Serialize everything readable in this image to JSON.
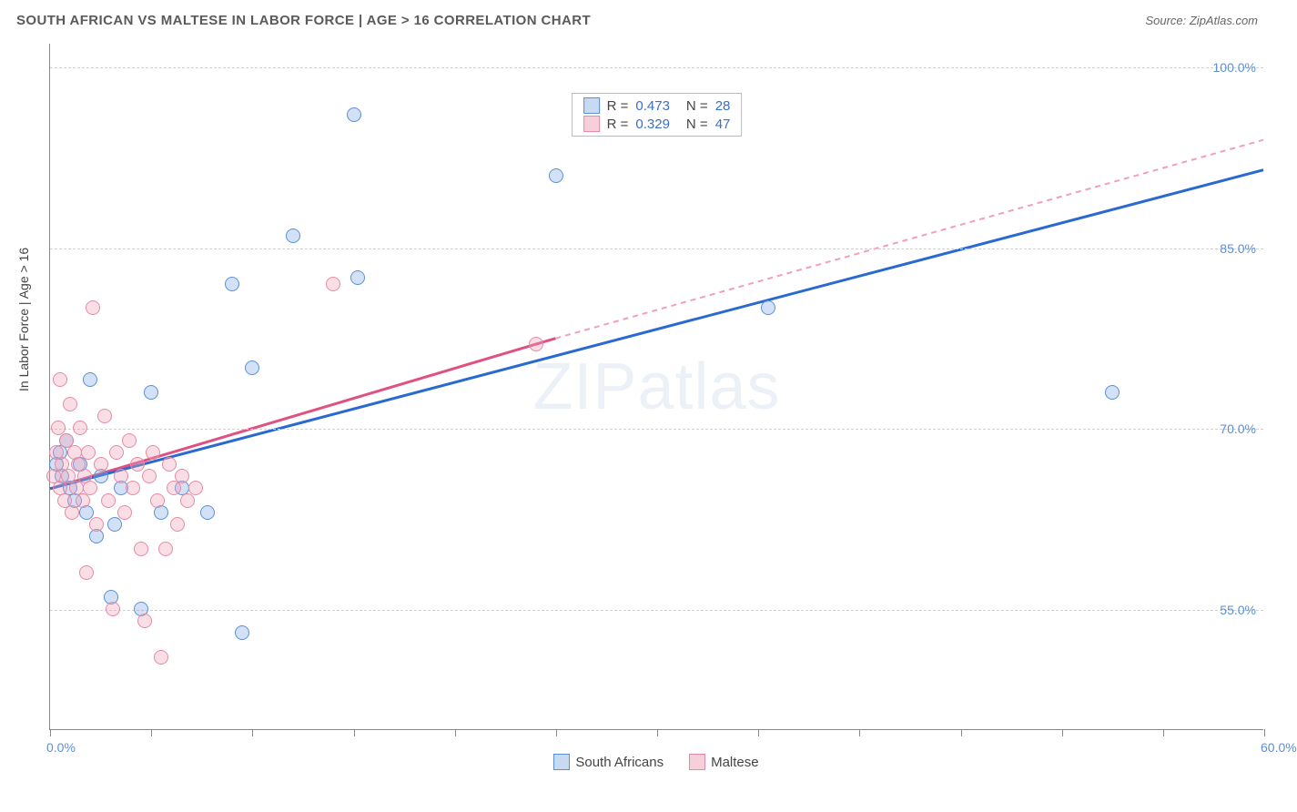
{
  "title": "SOUTH AFRICAN VS MALTESE IN LABOR FORCE | AGE > 16 CORRELATION CHART",
  "source": "Source: ZipAtlas.com",
  "y_axis_title": "In Labor Force | Age > 16",
  "watermark": "ZIPatlas",
  "chart": {
    "type": "scatter",
    "xlim": [
      0,
      60
    ],
    "ylim": [
      45,
      102
    ],
    "x_ticks": [
      0,
      5,
      10,
      15,
      20,
      25,
      30,
      35,
      40,
      45,
      50,
      55,
      60
    ],
    "x_tick_labels": {
      "0": "0.0%",
      "60": "60.0%"
    },
    "y_gridlines": [
      55,
      70,
      85,
      100
    ],
    "y_labels": {
      "55": "55.0%",
      "70": "70.0%",
      "85": "85.0%",
      "100": "100.0%"
    },
    "background_color": "#ffffff",
    "grid_color": "#d0d0d0",
    "axis_color": "#888888",
    "label_color": "#5b8fd8",
    "point_radius": 8,
    "series": [
      {
        "name": "South Africans",
        "color_fill": "rgba(130,170,230,0.35)",
        "color_stroke": "#5b8fd8",
        "legend_fill": "#c8daf2",
        "R": "0.473",
        "N": "28",
        "trend": {
          "x1": 0,
          "y1": 65,
          "x2": 60,
          "y2": 91.5,
          "stroke": "#2a6ad0",
          "width": 3,
          "dash": "none"
        },
        "points": [
          [
            0.3,
            67
          ],
          [
            0.5,
            68
          ],
          [
            0.6,
            66
          ],
          [
            0.8,
            69
          ],
          [
            1.0,
            65
          ],
          [
            1.2,
            64
          ],
          [
            1.5,
            67
          ],
          [
            1.8,
            63
          ],
          [
            2.0,
            74
          ],
          [
            2.3,
            61
          ],
          [
            2.5,
            66
          ],
          [
            3.0,
            56
          ],
          [
            3.2,
            62
          ],
          [
            3.5,
            65
          ],
          [
            4.5,
            55
          ],
          [
            5.0,
            73
          ],
          [
            5.5,
            63
          ],
          [
            6.5,
            65
          ],
          [
            7.8,
            63
          ],
          [
            9.0,
            82
          ],
          [
            9.5,
            53
          ],
          [
            10.0,
            75
          ],
          [
            12.0,
            86
          ],
          [
            15.0,
            96
          ],
          [
            15.2,
            82.5
          ],
          [
            25.0,
            91
          ],
          [
            35.5,
            80
          ],
          [
            52.5,
            73
          ]
        ]
      },
      {
        "name": "Maltese",
        "color_fill": "rgba(240,160,180,0.35)",
        "color_stroke": "#e68aa5",
        "legend_fill": "#f5d0da",
        "R": "0.329",
        "N": "47",
        "trend_solid": {
          "x1": 0,
          "y1": 65,
          "x2": 25,
          "y2": 77.5,
          "stroke": "#e05080",
          "width": 3
        },
        "trend_dash": {
          "x1": 25,
          "y1": 77.5,
          "x2": 60,
          "y2": 94,
          "stroke": "#f0a0b8",
          "width": 2,
          "dash": "6,5"
        },
        "points": [
          [
            0.2,
            66
          ],
          [
            0.3,
            68
          ],
          [
            0.4,
            70
          ],
          [
            0.5,
            65
          ],
          [
            0.6,
            67
          ],
          [
            0.7,
            64
          ],
          [
            0.8,
            69
          ],
          [
            0.9,
            66
          ],
          [
            1.0,
            72
          ],
          [
            1.1,
            63
          ],
          [
            1.2,
            68
          ],
          [
            1.3,
            65
          ],
          [
            1.4,
            67
          ],
          [
            1.5,
            70
          ],
          [
            1.6,
            64
          ],
          [
            1.7,
            66
          ],
          [
            1.8,
            58
          ],
          [
            1.9,
            68
          ],
          [
            2.0,
            65
          ],
          [
            2.1,
            80
          ],
          [
            2.3,
            62
          ],
          [
            2.5,
            67
          ],
          [
            2.7,
            71
          ],
          [
            2.9,
            64
          ],
          [
            3.1,
            55
          ],
          [
            3.3,
            68
          ],
          [
            3.5,
            66
          ],
          [
            3.7,
            63
          ],
          [
            3.9,
            69
          ],
          [
            4.1,
            65
          ],
          [
            4.3,
            67
          ],
          [
            4.5,
            60
          ],
          [
            4.7,
            54
          ],
          [
            4.9,
            66
          ],
          [
            5.1,
            68
          ],
          [
            5.3,
            64
          ],
          [
            5.5,
            51
          ],
          [
            5.7,
            60
          ],
          [
            5.9,
            67
          ],
          [
            6.1,
            65
          ],
          [
            6.3,
            62
          ],
          [
            6.5,
            66
          ],
          [
            6.8,
            64
          ],
          [
            7.2,
            65
          ],
          [
            14.0,
            82
          ],
          [
            24.0,
            77
          ],
          [
            0.5,
            74
          ]
        ]
      }
    ]
  },
  "legend": {
    "items": [
      {
        "label": "South Africans",
        "fill": "#c8daf2",
        "stroke": "#5b8fd8"
      },
      {
        "label": "Maltese",
        "fill": "#f5d0da",
        "stroke": "#e68aa5"
      }
    ]
  }
}
